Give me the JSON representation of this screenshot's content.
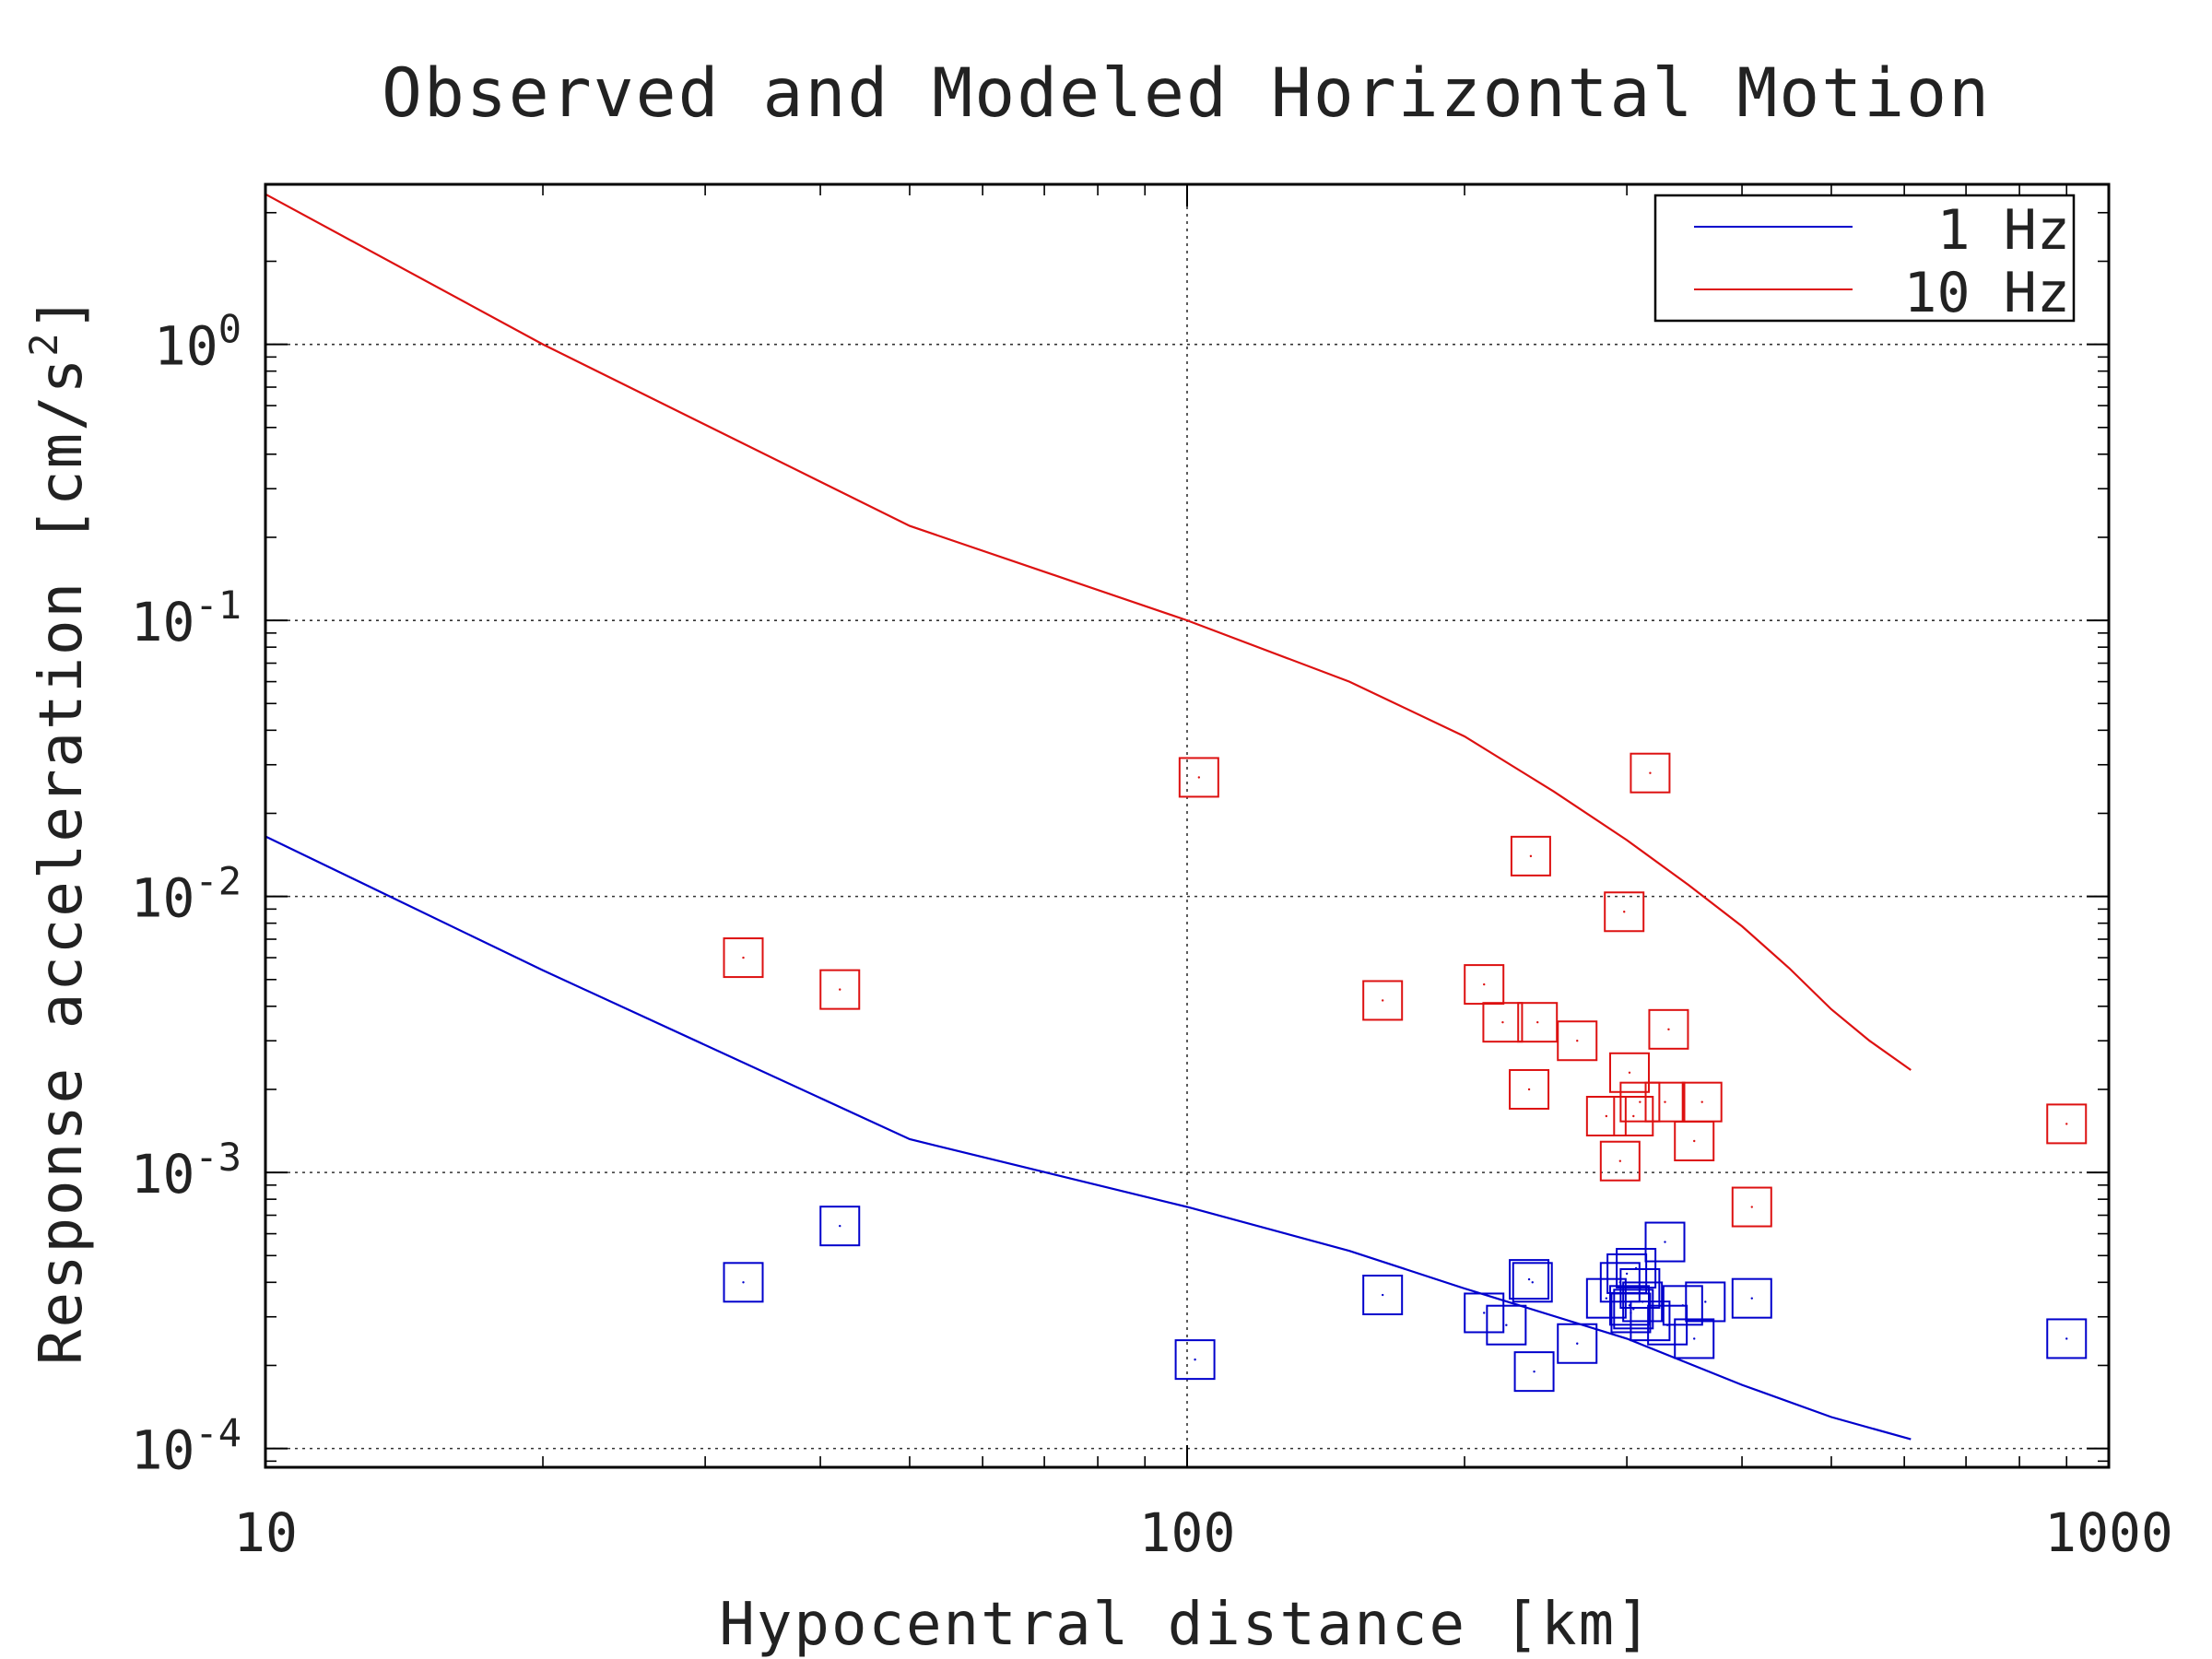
{
  "chart_data": {
    "type": "scatter",
    "title": "Observed and Modeled Horizontal Motion",
    "xlabel": "Hypocentral distance [km]",
    "ylabel": "Response acceleration [cm/s",
    "ylabel_sup": "2",
    "ylabel_close": "]",
    "x_scale": "log",
    "y_scale": "log",
    "xlim": [
      10,
      1000
    ],
    "ylim": [
      8.55e-05,
      3.8
    ],
    "grid": true,
    "legend_position": "top-right",
    "x_ticks": [
      {
        "value": 10,
        "label": "10"
      },
      {
        "value": 100,
        "label": "100"
      },
      {
        "value": 1000,
        "label": "1000"
      }
    ],
    "y_ticks": [
      {
        "value": 0.0001,
        "base": "10",
        "exp": "-4"
      },
      {
        "value": 0.001,
        "base": "10",
        "exp": "-3"
      },
      {
        "value": 0.01,
        "base": "10",
        "exp": "-2"
      },
      {
        "value": 0.1,
        "base": "10",
        "exp": "-1"
      },
      {
        "value": 1,
        "base": "10",
        "exp": "0"
      }
    ],
    "series": [
      {
        "name": "1 Hz",
        "color": "#0000cc",
        "model_line": [
          [
            10,
            0.0165
          ],
          [
            20,
            0.0054
          ],
          [
            50,
            0.00132
          ],
          [
            100,
            0.00075
          ],
          [
            150,
            0.00052
          ],
          [
            200,
            0.00038
          ],
          [
            300,
            0.00025
          ],
          [
            400,
            0.00017
          ],
          [
            500,
            0.00013
          ],
          [
            610,
            0.000108
          ]
        ],
        "observed": [
          [
            33,
            0.0004
          ],
          [
            42,
            0.00064
          ],
          [
            102,
            0.00021
          ],
          [
            163,
            0.00036
          ],
          [
            210,
            0.00031
          ],
          [
            222,
            0.00028
          ],
          [
            235,
            0.00041
          ],
          [
            237,
            0.0004
          ],
          [
            238,
            0.00019
          ],
          [
            265,
            0.00024
          ],
          [
            285,
            0.00035
          ],
          [
            295,
            0.0004
          ],
          [
            300,
            0.00043
          ],
          [
            302,
            0.00033
          ],
          [
            303,
            0.00031
          ],
          [
            305,
            0.00032
          ],
          [
            307,
            0.00045
          ],
          [
            310,
            0.00038
          ],
          [
            312,
            0.00034
          ],
          [
            318,
            0.00029
          ],
          [
            330,
            0.00056
          ],
          [
            332,
            0.00028
          ],
          [
            345,
            0.00033
          ],
          [
            355,
            0.00025
          ],
          [
            365,
            0.00034
          ],
          [
            410,
            0.00035
          ],
          [
            900,
            0.00025
          ]
        ]
      },
      {
        "name": "10 Hz",
        "color": "#dd1111",
        "model_line": [
          [
            10,
            3.5
          ],
          [
            20,
            1.0
          ],
          [
            50,
            0.22
          ],
          [
            100,
            0.1
          ],
          [
            150,
            0.06
          ],
          [
            200,
            0.038
          ],
          [
            250,
            0.024
          ],
          [
            300,
            0.016
          ],
          [
            350,
            0.011
          ],
          [
            400,
            0.0078
          ],
          [
            450,
            0.0055
          ],
          [
            500,
            0.0039
          ],
          [
            550,
            0.003
          ],
          [
            610,
            0.00235
          ]
        ],
        "observed": [
          [
            33,
            0.006
          ],
          [
            42,
            0.0046
          ],
          [
            103,
            0.027
          ],
          [
            163,
            0.0042
          ],
          [
            210,
            0.0048
          ],
          [
            220,
            0.0035
          ],
          [
            235,
            0.002
          ],
          [
            236,
            0.014
          ],
          [
            240,
            0.0035
          ],
          [
            265,
            0.003
          ],
          [
            285,
            0.0016
          ],
          [
            295,
            0.0011
          ],
          [
            298,
            0.0088
          ],
          [
            302,
            0.0023
          ],
          [
            305,
            0.0016
          ],
          [
            310,
            0.0018
          ],
          [
            318,
            0.028
          ],
          [
            330,
            0.0018
          ],
          [
            333,
            0.0033
          ],
          [
            355,
            0.0013
          ],
          [
            362,
            0.0018
          ],
          [
            410,
            0.00075
          ],
          [
            900,
            0.0015
          ]
        ]
      }
    ]
  }
}
